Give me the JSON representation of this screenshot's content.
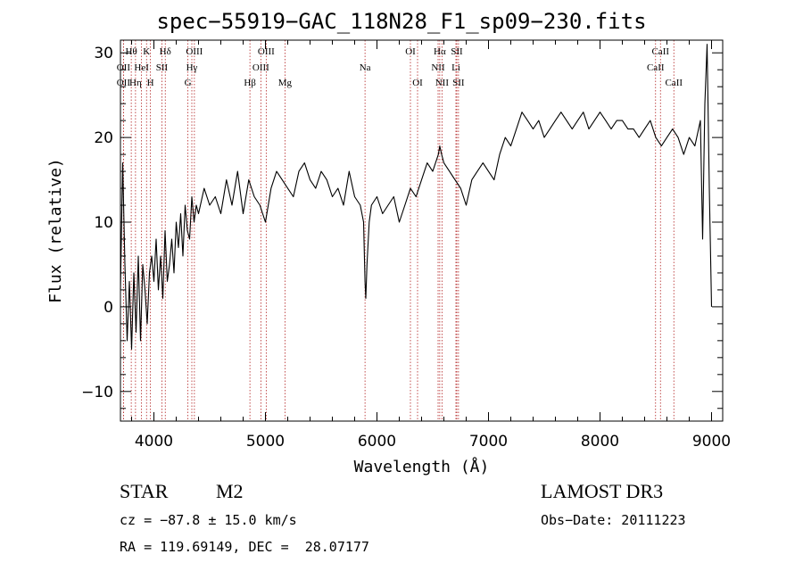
{
  "chart_data": {
    "type": "line",
    "title": "spec−55919−GAC_118N28_F1_sp09−230.fits",
    "xlabel": "Wavelength (Å)",
    "ylabel": "Flux (relative)",
    "xlim": [
      3700,
      9100
    ],
    "ylim": [
      -13.5,
      31.5
    ],
    "x_ticks": [
      {
        "value": 4000,
        "label": "4000"
      },
      {
        "value": 5000,
        "label": "5000"
      },
      {
        "value": 6000,
        "label": "6000"
      },
      {
        "value": 7000,
        "label": "7000"
      },
      {
        "value": 8000,
        "label": "8000"
      },
      {
        "value": 9000,
        "label": "9000"
      }
    ],
    "y_ticks": [
      {
        "value": -10,
        "label": "−10"
      },
      {
        "value": 0,
        "label": "0"
      },
      {
        "value": 10,
        "label": "10"
      },
      {
        "value": 20,
        "label": "20"
      },
      {
        "value": 30,
        "label": "30"
      }
    ],
    "series": [
      {
        "name": "flux",
        "x": [
          3700,
          3720,
          3740,
          3760,
          3780,
          3800,
          3820,
          3840,
          3860,
          3880,
          3900,
          3920,
          3940,
          3960,
          3980,
          4000,
          4020,
          4040,
          4060,
          4080,
          4100,
          4120,
          4140,
          4160,
          4180,
          4200,
          4220,
          4240,
          4260,
          4280,
          4300,
          4320,
          4340,
          4360,
          4380,
          4400,
          4450,
          4500,
          4550,
          4600,
          4650,
          4700,
          4750,
          4800,
          4850,
          4900,
          4950,
          5000,
          5050,
          5100,
          5150,
          5200,
          5250,
          5300,
          5350,
          5400,
          5450,
          5500,
          5550,
          5600,
          5650,
          5700,
          5750,
          5800,
          5850,
          5880,
          5893,
          5900,
          5910,
          5930,
          5950,
          6000,
          6050,
          6100,
          6150,
          6200,
          6250,
          6300,
          6350,
          6400,
          6450,
          6500,
          6550,
          6563,
          6580,
          6600,
          6650,
          6700,
          6750,
          6800,
          6850,
          6900,
          6950,
          7000,
          7050,
          7100,
          7150,
          7200,
          7250,
          7300,
          7350,
          7400,
          7450,
          7500,
          7550,
          7600,
          7650,
          7700,
          7750,
          7800,
          7850,
          7900,
          7950,
          8000,
          8050,
          8100,
          8150,
          8200,
          8250,
          8300,
          8350,
          8400,
          8450,
          8500,
          8550,
          8600,
          8650,
          8700,
          8750,
          8800,
          8850,
          8900,
          8920,
          8940,
          8960,
          8980,
          9000
        ],
        "y": [
          2,
          17,
          5,
          -4,
          3,
          -5,
          4,
          -3,
          6,
          -4,
          5,
          2,
          -2,
          4,
          6,
          3,
          8,
          2,
          6,
          1,
          9,
          3,
          5,
          8,
          4,
          10,
          7,
          11,
          6,
          12,
          9,
          8,
          13,
          10,
          12,
          11,
          14,
          12,
          13,
          11,
          15,
          12,
          16,
          11,
          15,
          13,
          12,
          10,
          14,
          16,
          15,
          14,
          13,
          16,
          17,
          15,
          14,
          16,
          15,
          13,
          14,
          12,
          16,
          13,
          12,
          10,
          3,
          1,
          5,
          10,
          12,
          13,
          11,
          12,
          13,
          10,
          12,
          14,
          13,
          15,
          17,
          16,
          18,
          19,
          18,
          17,
          16,
          15,
          14,
          12,
          15,
          16,
          17,
          16,
          15,
          18,
          20,
          19,
          21,
          23,
          22,
          21,
          22,
          20,
          21,
          22,
          23,
          22,
          21,
          22,
          23,
          21,
          22,
          23,
          22,
          21,
          22,
          22,
          21,
          21,
          20,
          21,
          22,
          20,
          19,
          20,
          21,
          20,
          18,
          20,
          19,
          22,
          8,
          24,
          31,
          14,
          0
        ]
      }
    ],
    "line_labels": [
      {
        "text": "Hθ",
        "x": 3797,
        "row": 0
      },
      {
        "text": "K",
        "x": 3934,
        "row": 0
      },
      {
        "text": "Hδ",
        "x": 4102,
        "row": 0
      },
      {
        "text": "OIII",
        "x": 4363,
        "row": 0
      },
      {
        "text": "OIII",
        "x": 5007,
        "row": 0
      },
      {
        "text": "OI",
        "x": 6300,
        "row": 0
      },
      {
        "text": "Hα",
        "x": 6563,
        "row": 0
      },
      {
        "text": "SII",
        "x": 6716,
        "row": 0
      },
      {
        "text": "CaII",
        "x": 8542,
        "row": 0
      },
      {
        "text": "OII",
        "x": 3727,
        "row": 1
      },
      {
        "text": "HeI",
        "x": 3889,
        "row": 1
      },
      {
        "text": "SII",
        "x": 4072,
        "row": 1
      },
      {
        "text": "Hγ",
        "x": 4340,
        "row": 1
      },
      {
        "text": "OIII",
        "x": 4959,
        "row": 1
      },
      {
        "text": "Na",
        "x": 5893,
        "row": 1
      },
      {
        "text": "NII",
        "x": 6548,
        "row": 1
      },
      {
        "text": "Li",
        "x": 6708,
        "row": 1
      },
      {
        "text": "CaII",
        "x": 8498,
        "row": 1
      },
      {
        "text": "OII",
        "x": 3727,
        "row": 2
      },
      {
        "text": "Hη",
        "x": 3835,
        "row": 2
      },
      {
        "text": "H",
        "x": 3969,
        "row": 2
      },
      {
        "text": "G",
        "x": 4305,
        "row": 2
      },
      {
        "text": "Hβ",
        "x": 4861,
        "row": 2
      },
      {
        "text": "Mg",
        "x": 5175,
        "row": 2
      },
      {
        "text": "OI",
        "x": 6364,
        "row": 2
      },
      {
        "text": "NII",
        "x": 6583,
        "row": 2
      },
      {
        "text": "SII",
        "x": 6731,
        "row": 2
      },
      {
        "text": "CaII",
        "x": 8662,
        "row": 2
      }
    ]
  },
  "info": {
    "object_type": "STAR",
    "subclass": "M2",
    "survey": "LAMOST DR3",
    "redshift": "cz = −87.8 ± 15.0 km/s",
    "obs_date": "Obs−Date: 20111223",
    "coords": "RA = 119.69149, DEC =  28.07177"
  },
  "colors": {
    "line_marker": "#b22222",
    "spectrum": "#000000"
  }
}
